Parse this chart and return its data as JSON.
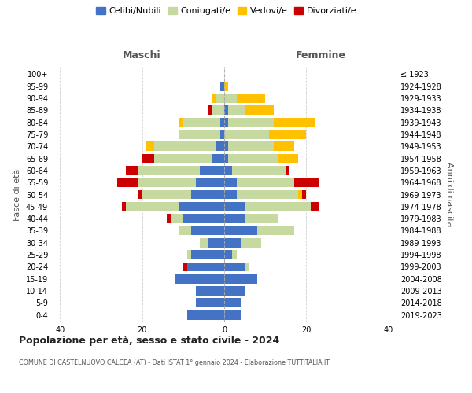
{
  "age_groups": [
    "0-4",
    "5-9",
    "10-14",
    "15-19",
    "20-24",
    "25-29",
    "30-34",
    "35-39",
    "40-44",
    "45-49",
    "50-54",
    "55-59",
    "60-64",
    "65-69",
    "70-74",
    "75-79",
    "80-84",
    "85-89",
    "90-94",
    "95-99",
    "100+"
  ],
  "birth_years": [
    "2019-2023",
    "2014-2018",
    "2009-2013",
    "2004-2008",
    "1999-2003",
    "1994-1998",
    "1989-1993",
    "1984-1988",
    "1979-1983",
    "1974-1978",
    "1969-1973",
    "1964-1968",
    "1959-1963",
    "1954-1958",
    "1949-1953",
    "1944-1948",
    "1939-1943",
    "1934-1938",
    "1929-1933",
    "1924-1928",
    "≤ 1923"
  ],
  "maschi": {
    "celibi": [
      9,
      7,
      7,
      12,
      9,
      8,
      4,
      8,
      10,
      11,
      8,
      7,
      6,
      3,
      2,
      1,
      1,
      0,
      0,
      1,
      0
    ],
    "coniugati": [
      0,
      0,
      0,
      0,
      0,
      1,
      2,
      3,
      3,
      13,
      12,
      14,
      15,
      14,
      15,
      10,
      9,
      3,
      2,
      0,
      0
    ],
    "vedovi": [
      0,
      0,
      0,
      0,
      0,
      0,
      0,
      0,
      0,
      0,
      0,
      0,
      0,
      0,
      2,
      0,
      1,
      0,
      1,
      0,
      0
    ],
    "divorziati": [
      0,
      0,
      0,
      0,
      1,
      0,
      0,
      0,
      1,
      1,
      1,
      5,
      3,
      3,
      0,
      0,
      0,
      1,
      0,
      0,
      0
    ]
  },
  "femmine": {
    "nubili": [
      4,
      4,
      5,
      8,
      5,
      2,
      4,
      8,
      5,
      5,
      3,
      3,
      2,
      1,
      1,
      0,
      1,
      1,
      0,
      0,
      0
    ],
    "coniugate": [
      0,
      0,
      0,
      0,
      1,
      1,
      5,
      9,
      8,
      16,
      15,
      14,
      13,
      12,
      11,
      11,
      11,
      4,
      3,
      0,
      0
    ],
    "vedove": [
      0,
      0,
      0,
      0,
      0,
      0,
      0,
      0,
      0,
      0,
      1,
      0,
      0,
      5,
      5,
      9,
      10,
      7,
      7,
      1,
      0
    ],
    "divorziate": [
      0,
      0,
      0,
      0,
      0,
      0,
      0,
      0,
      0,
      2,
      1,
      6,
      1,
      0,
      0,
      0,
      0,
      0,
      0,
      0,
      0
    ]
  },
  "colors": {
    "celibi_nubili": "#4472c4",
    "coniugati": "#c5d9a0",
    "vedovi": "#ffc000",
    "divorziati": "#cc0000"
  },
  "title": "Popolazione per età, sesso e stato civile - 2024",
  "subtitle": "COMUNE DI CASTELNUOVO CALCEA (AT) - Dati ISTAT 1° gennaio 2024 - Elaborazione TUTTITALIA.IT",
  "xlabel_left": "Maschi",
  "xlabel_right": "Femmine",
  "ylabel_left": "Fasce di età",
  "ylabel_right": "Anni di nascita",
  "xlim": [
    -42,
    42
  ],
  "xticks": [
    -40,
    -20,
    0,
    20,
    40
  ],
  "xticklabels": [
    "40",
    "20",
    "0",
    "20",
    "40"
  ],
  "legend_labels": [
    "Celibi/Nubili",
    "Coniugati/e",
    "Vedovi/e",
    "Divorziati/e"
  ],
  "bg_color": "#ffffff"
}
